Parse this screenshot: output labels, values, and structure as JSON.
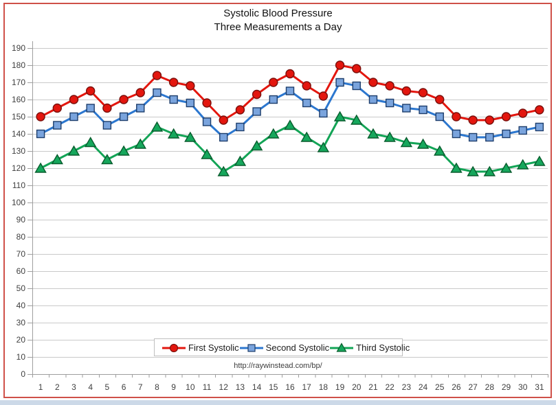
{
  "chart_data": {
    "type": "line",
    "title": "Systolic Blood Pressure",
    "subtitle": "Three Measurements a Day",
    "xlabel": "",
    "ylabel": "",
    "categories": [
      1,
      2,
      3,
      4,
      5,
      6,
      7,
      8,
      9,
      10,
      11,
      12,
      13,
      14,
      15,
      16,
      17,
      18,
      19,
      20,
      21,
      22,
      23,
      24,
      25,
      26,
      27,
      28,
      29,
      30,
      31
    ],
    "series": [
      {
        "name": "First Systolic",
        "marker": "circle",
        "line_color": "#e3160e",
        "marker_fill": "#e3160e",
        "marker_stroke": "#7a100c",
        "values": [
          150,
          155,
          160,
          165,
          155,
          160,
          164,
          174,
          170,
          168,
          158,
          148,
          154,
          163,
          170,
          175,
          168,
          162,
          180,
          178,
          170,
          168,
          165,
          164,
          160,
          150,
          148,
          148,
          150,
          152,
          154
        ]
      },
      {
        "name": "Second Systolic",
        "marker": "square",
        "line_color": "#2c77cf",
        "marker_fill": "#7aa4dd",
        "marker_stroke": "#1d3d6b",
        "values": [
          140,
          145,
          150,
          155,
          145,
          150,
          155,
          164,
          160,
          158,
          147,
          138,
          144,
          153,
          160,
          165,
          158,
          152,
          170,
          168,
          160,
          158,
          155,
          154,
          150,
          140,
          138,
          138,
          140,
          142,
          144
        ]
      },
      {
        "name": "Third Systolic",
        "marker": "triangle",
        "line_color": "#13a456",
        "marker_fill": "#16a75c",
        "marker_stroke": "#085c2d",
        "values": [
          120,
          125,
          130,
          135,
          125,
          130,
          134,
          144,
          140,
          138,
          128,
          118,
          124,
          133,
          140,
          145,
          138,
          132,
          150,
          148,
          140,
          138,
          135,
          134,
          130,
          120,
          118,
          118,
          120,
          122,
          124
        ]
      }
    ],
    "ylim": [
      0,
      190
    ],
    "yticks": [
      0,
      10,
      20,
      30,
      40,
      50,
      60,
      70,
      80,
      90,
      100,
      110,
      120,
      130,
      140,
      150,
      160,
      170,
      180,
      190
    ],
    "grid": true,
    "legend_position": "bottom-inside"
  },
  "footer_url": "http://raywinstead.com/bp/",
  "style_colors": {
    "frame_border": "#cf5048",
    "gridline": "#c9c9c9",
    "axis": "#9e9e9e",
    "tick_label": "#3f3f3f",
    "legend_border": "#bfbfbf"
  }
}
